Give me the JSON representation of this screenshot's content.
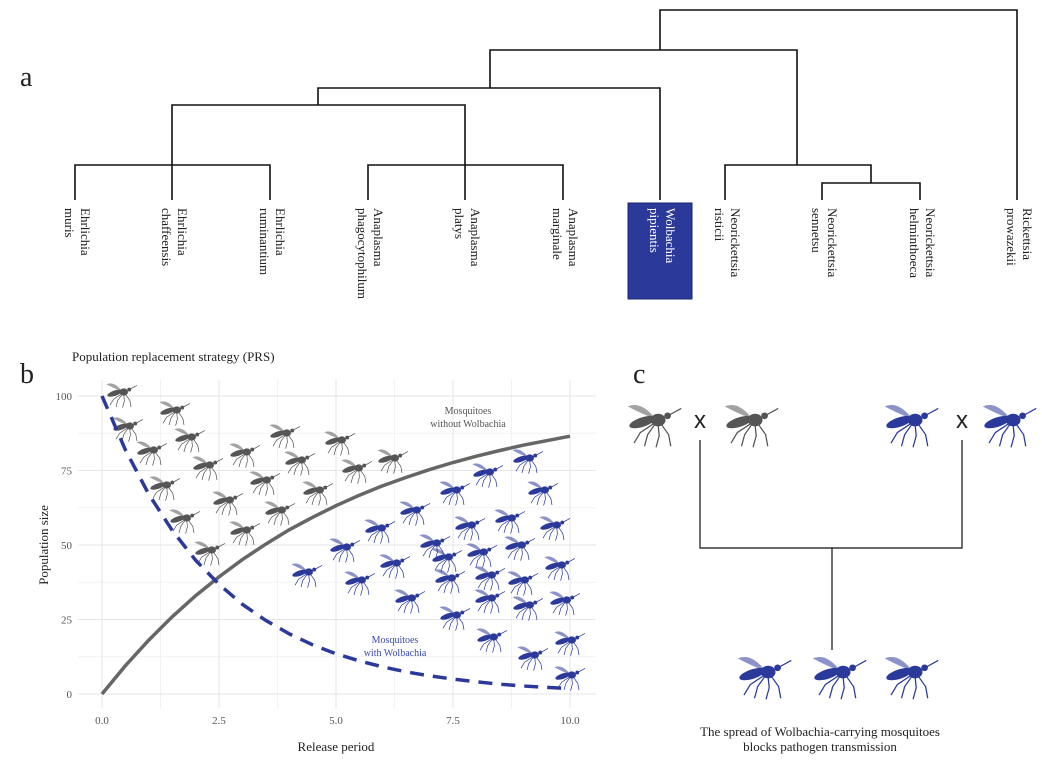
{
  "panel_labels": [
    "a",
    "b",
    "c"
  ],
  "tree": {
    "leaves": [
      {
        "lines": [
          "Ehrlichia",
          "muris"
        ]
      },
      {
        "lines": [
          "Ehrlichia",
          "chaffeensis"
        ]
      },
      {
        "lines": [
          "Ehrlichia",
          "ruminantium"
        ]
      },
      {
        "lines": [
          "Anaplasma",
          "phagocytophilum"
        ]
      },
      {
        "lines": [
          "Anaplasma",
          "platys"
        ]
      },
      {
        "lines": [
          "Anaplasma",
          "marginale"
        ]
      },
      {
        "lines": [
          "Wolbachia",
          "pipientis"
        ],
        "highlight": true
      },
      {
        "lines": [
          "Neorickettsia",
          "risticii"
        ]
      },
      {
        "lines": [
          "Neorickettsia",
          "sennetsu"
        ]
      },
      {
        "lines": [
          "Neorickettsia",
          "helminthoeca"
        ]
      },
      {
        "lines": [
          "Rickettsia",
          "prowazekii"
        ]
      }
    ]
  },
  "chart_data": {
    "type": "line",
    "title": "Population replacement strategy (PRS)",
    "x_label": "Release period",
    "y_label": "Population size",
    "x": [
      0,
      0.5,
      1,
      1.5,
      2,
      2.5,
      3,
      3.5,
      4,
      4.5,
      5,
      5.5,
      6,
      6.5,
      7,
      7.5,
      8,
      8.5,
      9,
      9.5,
      10
    ],
    "series": [
      {
        "color": "#666666",
        "dashed": false,
        "values": [
          0,
          9.5,
          18.1,
          25.9,
          33.0,
          39.3,
          45.1,
          50.3,
          55.1,
          59.3,
          63.2,
          66.7,
          69.9,
          72.7,
          75.3,
          77.7,
          79.8,
          81.7,
          83.5,
          85.0,
          86.5
        ]
      },
      {
        "color": "#2b3a9a",
        "dashed": true,
        "values": [
          100,
          81.9,
          67.0,
          54.9,
          44.9,
          36.8,
          30.1,
          24.7,
          20.2,
          16.5,
          13.5,
          11.1,
          9.1,
          7.4,
          6.1,
          5.0,
          4.1,
          3.3,
          2.7,
          2.2,
          1.8
        ]
      }
    ],
    "xlim": [
      0,
      10
    ],
    "ylim": [
      0,
      100
    ],
    "xticks": [
      {
        "value": 0,
        "label": "0.0"
      },
      {
        "value": 2.5,
        "label": "2.5"
      },
      {
        "value": 5,
        "label": "5.0"
      },
      {
        "value": 7.5,
        "label": "7.5"
      },
      {
        "value": 10,
        "label": "10.0"
      }
    ],
    "yticks": [
      0,
      25,
      50,
      75,
      100
    ],
    "grid": true,
    "annotations": [
      {
        "lines": [
          "Mosquitoes",
          "without Wolbachia"
        ],
        "color": "#555555"
      },
      {
        "lines": [
          "Mosquitoes",
          "with Wolbachia"
        ],
        "color": "#3a4ab0"
      }
    ]
  },
  "cross": {
    "symbol": "x",
    "caption": [
      "The spread of Wolbachia-carrying mosquitoes",
      "blocks pathogen transmission"
    ]
  }
}
